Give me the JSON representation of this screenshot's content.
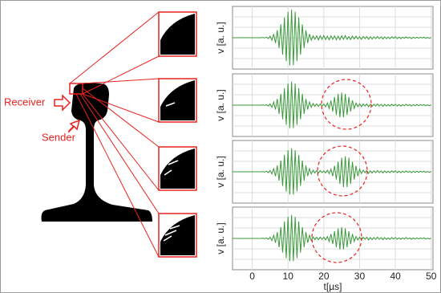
{
  "figure_labels": [
    "Receiver",
    "Sender"
  ],
  "chart_data": [
    {
      "type": "line",
      "ylabel": "v [a. u.]",
      "color": "#3a9a3a",
      "xlim": [
        -5.5,
        50.5
      ],
      "ylim": [
        -10,
        10
      ],
      "grid": true,
      "x": [
        -5.5,
        -5,
        -4.5,
        -4,
        -3.5,
        -3,
        -2.5,
        -2,
        -1.5,
        -1,
        -0.5,
        0,
        0.5,
        1,
        1.5,
        2,
        2.5,
        3,
        3.5,
        4,
        4.5,
        5,
        5.5,
        6,
        6.5,
        7,
        7.5,
        8,
        8.5,
        9,
        9.5,
        10,
        10.5,
        11,
        11.5,
        12,
        12.5,
        13,
        13.5,
        14,
        14.5,
        15,
        15.5,
        16,
        16.5,
        17,
        17.5,
        18,
        18.5,
        19,
        19.5,
        20,
        20.5,
        21,
        21.5,
        22,
        22.5,
        23,
        23.5,
        24,
        24.5,
        25,
        25.5,
        26,
        26.5,
        27,
        27.5,
        28,
        28.5,
        29,
        29.5,
        30,
        30.5,
        31,
        31.5,
        32,
        32.5,
        33,
        33.5,
        34,
        34.5,
        35,
        35.5,
        36,
        36.5,
        37,
        37.5,
        38,
        38.5,
        39,
        39.5,
        40,
        40.5,
        41,
        41.5,
        42,
        42.5,
        43,
        43.5,
        44,
        44.5,
        45,
        45.5,
        46,
        46.5,
        47,
        47.5,
        48,
        48.5,
        49,
        49.5,
        50
      ],
      "values": [
        0,
        0,
        0,
        0,
        0,
        0,
        0,
        0,
        0,
        0,
        0,
        0,
        0,
        0,
        0,
        0,
        0,
        0.1,
        -0.1,
        0.2,
        -0.3,
        0.5,
        -0.8,
        1.2,
        -1.7,
        2.4,
        -3.3,
        4.3,
        -5.4,
        6.5,
        -7.5,
        8.3,
        -8.8,
        9,
        -8.8,
        8.3,
        -7.5,
        6.5,
        -5.4,
        4.3,
        -3.3,
        2.4,
        -1.7,
        1.2,
        -0.8,
        0.6,
        -0.5,
        0.6,
        -0.7,
        0.6,
        -0.5,
        0.7,
        -0.6,
        0.5,
        -0.7,
        0.6,
        -0.5,
        0.6,
        -0.7,
        0.5,
        -0.6,
        0.6,
        -0.5,
        0.7,
        -0.5,
        0.4,
        -0.6,
        0.5,
        -0.4,
        0.5,
        -0.4,
        0.3,
        -0.5,
        0.4,
        -0.3,
        0.4,
        -0.5,
        0.3,
        -0.4,
        0.3,
        -0.3,
        0.4,
        -0.3,
        0.3,
        -0.4,
        0.3,
        -0.3,
        0.2,
        -0.3,
        0.3,
        -0.2,
        0.3,
        -0.3,
        0.2,
        -0.3,
        0.2,
        -0.2,
        0.3,
        -0.2,
        0.2,
        -0.3,
        0.2,
        -0.2,
        0.2,
        -0.2,
        0.2,
        -0.1,
        0.2,
        -0.2,
        0.1,
        -0.2,
        0.1
      ]
    },
    {
      "type": "line",
      "ylabel": "v [a. u.]",
      "color": "#3a9a3a",
      "xlim": [
        -5.5,
        50.5
      ],
      "ylim": [
        -10,
        10
      ],
      "grid": true,
      "x": [
        -5.5,
        -5,
        -4.5,
        -4,
        -3.5,
        -3,
        -2.5,
        -2,
        -1.5,
        -1,
        -0.5,
        0,
        0.5,
        1,
        1.5,
        2,
        2.5,
        3,
        3.5,
        4,
        4.5,
        5,
        5.5,
        6,
        6.5,
        7,
        7.5,
        8,
        8.5,
        9,
        9.5,
        10,
        10.5,
        11,
        11.5,
        12,
        12.5,
        13,
        13.5,
        14,
        14.5,
        15,
        15.5,
        16,
        16.5,
        17,
        17.5,
        18,
        18.5,
        19,
        19.5,
        20,
        20.5,
        21,
        21.5,
        22,
        22.5,
        23,
        23.5,
        24,
        24.5,
        25,
        25.5,
        26,
        26.5,
        27,
        27.5,
        28,
        28.5,
        29,
        29.5,
        30,
        30.5,
        31,
        31.5,
        32,
        32.5,
        33,
        33.5,
        34,
        34.5,
        35,
        35.5,
        36,
        36.5,
        37,
        37.5,
        38,
        38.5,
        39,
        39.5,
        40,
        40.5,
        41,
        41.5,
        42,
        42.5,
        43,
        43.5,
        44,
        44.5,
        45,
        45.5,
        46,
        46.5,
        47,
        47.5,
        48,
        48.5,
        49,
        49.5,
        50
      ],
      "values": [
        0,
        0,
        0,
        0,
        0,
        0,
        0,
        0,
        0,
        0,
        0,
        0,
        0,
        0,
        0,
        0,
        0,
        0.1,
        -0.1,
        0.2,
        -0.3,
        0.4,
        -0.7,
        1.0,
        -1.4,
        2.0,
        -2.8,
        3.6,
        -4.5,
        5.4,
        -6.3,
        6.9,
        -7.3,
        7.5,
        -7.3,
        6.9,
        -6.3,
        5.4,
        -4.5,
        3.6,
        -2.8,
        2.0,
        -1.4,
        1.0,
        -0.7,
        0.5,
        -0.4,
        0.4,
        -0.4,
        0.4,
        -0.3,
        0.4,
        -0.5,
        0.7,
        -1.1,
        1.5,
        -2.0,
        2.6,
        -3.1,
        3.6,
        -3.9,
        4.0,
        -3.9,
        3.6,
        -3.1,
        2.6,
        -2.0,
        1.5,
        -1.1,
        0.7,
        -0.5,
        0.4,
        -0.5,
        0.4,
        -0.3,
        0.4,
        -0.5,
        0.3,
        -0.4,
        0.3,
        -0.3,
        0.4,
        -0.3,
        0.3,
        -0.4,
        0.3,
        -0.3,
        0.2,
        -0.3,
        0.3,
        -0.2,
        0.3,
        -0.3,
        0.2,
        -0.3,
        0.2,
        -0.2,
        0.3,
        -0.2,
        0.2,
        -0.3,
        0.2,
        -0.2,
        0.2,
        -0.2,
        0.2,
        -0.1,
        0.2,
        -0.2,
        0.1,
        -0.2,
        0.1
      ]
    },
    {
      "type": "line",
      "ylabel": "v [a. u.]",
      "color": "#3a9a3a",
      "xlim": [
        -5.5,
        50.5
      ],
      "ylim": [
        -10,
        10
      ],
      "grid": true,
      "x": [
        -5.5,
        -5,
        -4.5,
        -4,
        -3.5,
        -3,
        -2.5,
        -2,
        -1.5,
        -1,
        -0.5,
        0,
        0.5,
        1,
        1.5,
        2,
        2.5,
        3,
        3.5,
        4,
        4.5,
        5,
        5.5,
        6,
        6.5,
        7,
        7.5,
        8,
        8.5,
        9,
        9.5,
        10,
        10.5,
        11,
        11.5,
        12,
        12.5,
        13,
        13.5,
        14,
        14.5,
        15,
        15.5,
        16,
        16.5,
        17,
        17.5,
        18,
        18.5,
        19,
        19.5,
        20,
        20.5,
        21,
        21.5,
        22,
        22.5,
        23,
        23.5,
        24,
        24.5,
        25,
        25.5,
        26,
        26.5,
        27,
        27.5,
        28,
        28.5,
        29,
        29.5,
        30,
        30.5,
        31,
        31.5,
        32,
        32.5,
        33,
        33.5,
        34,
        34.5,
        35,
        35.5,
        36,
        36.5,
        37,
        37.5,
        38,
        38.5,
        39,
        39.5,
        40,
        40.5,
        41,
        41.5,
        42,
        42.5,
        43,
        43.5,
        44,
        44.5,
        45,
        45.5,
        46,
        46.5,
        47,
        47.5,
        48,
        48.5,
        49,
        49.5,
        50
      ],
      "values": [
        0,
        0,
        0,
        0,
        0,
        0,
        0,
        0,
        0,
        0,
        0,
        0,
        0,
        0,
        0,
        0,
        0,
        0.1,
        -0.1,
        0.2,
        -0.3,
        0.4,
        -0.7,
        1.0,
        -1.4,
        2.0,
        -2.8,
        3.6,
        -4.5,
        5.4,
        -6.3,
        6.9,
        -7.3,
        7.5,
        -7.3,
        6.9,
        -6.3,
        5.4,
        -4.5,
        3.6,
        -2.8,
        2.0,
        -1.4,
        1.0,
        -0.7,
        0.5,
        -0.4,
        0.4,
        -0.4,
        0.4,
        -0.3,
        0.3,
        -0.4,
        0.5,
        -0.6,
        0.9,
        -1.4,
        1.9,
        -2.5,
        3.2,
        -3.9,
        4.5,
        -4.9,
        5.0,
        -4.9,
        4.5,
        -3.9,
        3.2,
        -2.5,
        1.9,
        -1.4,
        0.9,
        -0.6,
        0.5,
        -0.3,
        0.4,
        -0.5,
        0.3,
        -0.4,
        0.3,
        -0.3,
        0.4,
        -0.3,
        0.3,
        -0.4,
        0.3,
        -0.3,
        0.2,
        -0.3,
        0.3,
        -0.2,
        0.3,
        -0.3,
        0.2,
        -0.3,
        0.2,
        -0.2,
        0.3,
        -0.2,
        0.2,
        -0.3,
        0.2,
        -0.2,
        0.2,
        -0.2,
        0.2,
        -0.1,
        0.2,
        -0.2,
        0.1,
        -0.2,
        0.1
      ]
    },
    {
      "type": "line",
      "ylabel": "v [a. u.]",
      "xlabel": "t[µs]",
      "color": "#3a9a3a",
      "xlim": [
        -5.5,
        50.5
      ],
      "ylim": [
        -10,
        10
      ],
      "grid": true,
      "xticks": [
        0,
        10,
        20,
        30,
        40,
        50
      ],
      "x": [
        -5.5,
        -5,
        -4.5,
        -4,
        -3.5,
        -3,
        -2.5,
        -2,
        -1.5,
        -1,
        -0.5,
        0,
        0.5,
        1,
        1.5,
        2,
        2.5,
        3,
        3.5,
        4,
        4.5,
        5,
        5.5,
        6,
        6.5,
        7,
        7.5,
        8,
        8.5,
        9,
        9.5,
        10,
        10.5,
        11,
        11.5,
        12,
        12.5,
        13,
        13.5,
        14,
        14.5,
        15,
        15.5,
        16,
        16.5,
        17,
        17.5,
        18,
        18.5,
        19,
        19.5,
        20,
        20.5,
        21,
        21.5,
        22,
        22.5,
        23,
        23.5,
        24,
        24.5,
        25,
        25.5,
        26,
        26.5,
        27,
        27.5,
        28,
        28.5,
        29,
        29.5,
        30,
        30.5,
        31,
        31.5,
        32,
        32.5,
        33,
        33.5,
        34,
        34.5,
        35,
        35.5,
        36,
        36.5,
        37,
        37.5,
        38,
        38.5,
        39,
        39.5,
        40,
        40.5,
        41,
        41.5,
        42,
        42.5,
        43,
        43.5,
        44,
        44.5,
        45,
        45.5,
        46,
        46.5,
        47,
        47.5,
        48,
        48.5,
        49,
        49.5,
        50
      ],
      "values": [
        0,
        0,
        0,
        0,
        0,
        0,
        0,
        0,
        0,
        0,
        0,
        0,
        0,
        0,
        0,
        0,
        0,
        0.1,
        -0.1,
        0.2,
        -0.3,
        0.4,
        -0.7,
        1.0,
        -1.4,
        2.0,
        -2.8,
        3.6,
        -4.5,
        5.4,
        -6.3,
        6.9,
        -7.3,
        7.5,
        -7.3,
        6.9,
        -6.3,
        5.4,
        -4.5,
        3.6,
        -2.8,
        2.0,
        -1.4,
        1.0,
        -0.7,
        0.5,
        -0.4,
        0.4,
        -0.4,
        0.4,
        -0.3,
        0.4,
        -0.5,
        0.6,
        -1.0,
        1.4,
        -1.8,
        2.3,
        -2.8,
        3.2,
        -3.5,
        3.6,
        -3.5,
        3.2,
        -2.8,
        2.3,
        -1.8,
        1.4,
        -1.0,
        0.6,
        -0.5,
        0.4,
        -0.5,
        0.4,
        -0.3,
        0.4,
        -0.5,
        0.3,
        -0.4,
        0.3,
        -0.3,
        0.4,
        -0.3,
        0.3,
        -0.4,
        0.3,
        -0.3,
        0.2,
        -0.3,
        0.3,
        -0.2,
        0.3,
        -0.3,
        0.2,
        -0.3,
        0.2,
        -0.2,
        0.3,
        -0.2,
        0.2,
        -0.3,
        0.2,
        -0.2,
        0.2,
        -0.2,
        0.2,
        -0.1,
        0.2,
        -0.2,
        0.1,
        -0.2,
        0.1
      ]
    }
  ]
}
